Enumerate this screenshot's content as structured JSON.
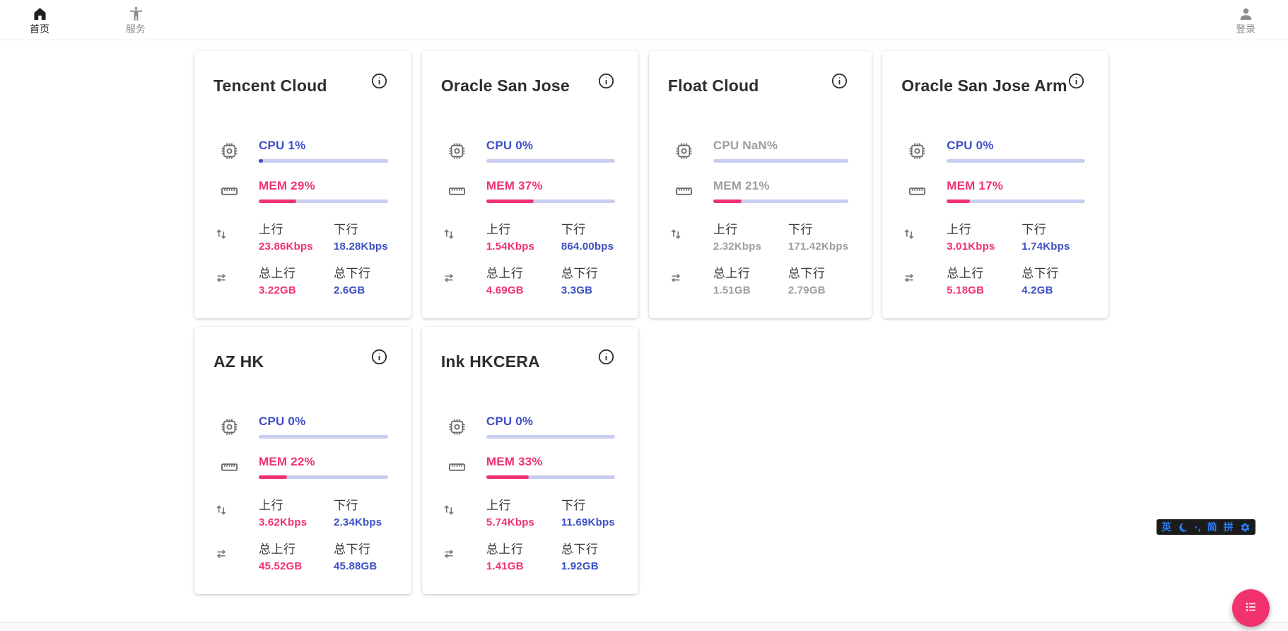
{
  "navbar": {
    "left": [
      {
        "label": "首页",
        "icon": "home-icon",
        "active": true
      },
      {
        "label": "服务",
        "icon": "accessibility-icon",
        "active": false
      }
    ],
    "login": {
      "label": "登录",
      "icon": "person-icon"
    }
  },
  "labels": {
    "up": "上行",
    "down": "下行",
    "total_up": "总上行",
    "total_down": "总下行"
  },
  "servers": [
    {
      "name": "Tencent Cloud",
      "online": true,
      "cpu": {
        "text": "CPU 1%",
        "pct": 1
      },
      "mem": {
        "text": "MEM 29%",
        "pct": 29
      },
      "net": {
        "up": "23.86Kbps",
        "down": "18.28Kbps"
      },
      "total": {
        "up": "3.22GB",
        "down": "2.6GB"
      }
    },
    {
      "name": "Oracle San Jose",
      "online": true,
      "cpu": {
        "text": "CPU 0%",
        "pct": 0
      },
      "mem": {
        "text": "MEM 37%",
        "pct": 37
      },
      "net": {
        "up": "1.54Kbps",
        "down": "864.00bps"
      },
      "total": {
        "up": "4.69GB",
        "down": "3.3GB"
      }
    },
    {
      "name": "Float Cloud",
      "online": false,
      "cpu": {
        "text": "CPU NaN%",
        "pct": 0
      },
      "mem": {
        "text": "MEM 21%",
        "pct": 21
      },
      "net": {
        "up": "2.32Kbps",
        "down": "171.42Kbps"
      },
      "total": {
        "up": "1.51GB",
        "down": "2.79GB"
      }
    },
    {
      "name": "Oracle San Jose Arm",
      "online": true,
      "cpu": {
        "text": "CPU 0%",
        "pct": 0
      },
      "mem": {
        "text": "MEM 17%",
        "pct": 17
      },
      "net": {
        "up": "3.01Kbps",
        "down": "1.74Kbps"
      },
      "total": {
        "up": "5.18GB",
        "down": "4.2GB"
      }
    },
    {
      "name": "AZ HK",
      "online": true,
      "cpu": {
        "text": "CPU 0%",
        "pct": 0
      },
      "mem": {
        "text": "MEM 22%",
        "pct": 22
      },
      "net": {
        "up": "3.62Kbps",
        "down": "2.34Kbps"
      },
      "total": {
        "up": "45.52GB",
        "down": "45.88GB"
      }
    },
    {
      "name": "Ink HKCERA",
      "online": true,
      "cpu": {
        "text": "CPU 0%",
        "pct": 0
      },
      "mem": {
        "text": "MEM 33%",
        "pct": 33
      },
      "net": {
        "up": "5.74Kbps",
        "down": "11.69Kbps"
      },
      "total": {
        "up": "1.41GB",
        "down": "1.92GB"
      }
    }
  ],
  "ime": {
    "english": "英",
    "punct": "·,",
    "simplified": "简",
    "pinyin": "拼",
    "icons": [
      "crescent-moon-icon",
      "gear-icon"
    ]
  },
  "colors": {
    "blue": "#3d4fc5",
    "pink": "#f1326f",
    "bar_track": "#c9cef1",
    "offline_gray": "#9e9e9e",
    "fab_pink": "#f1326f",
    "ime_blue": "#2b7cf7"
  }
}
